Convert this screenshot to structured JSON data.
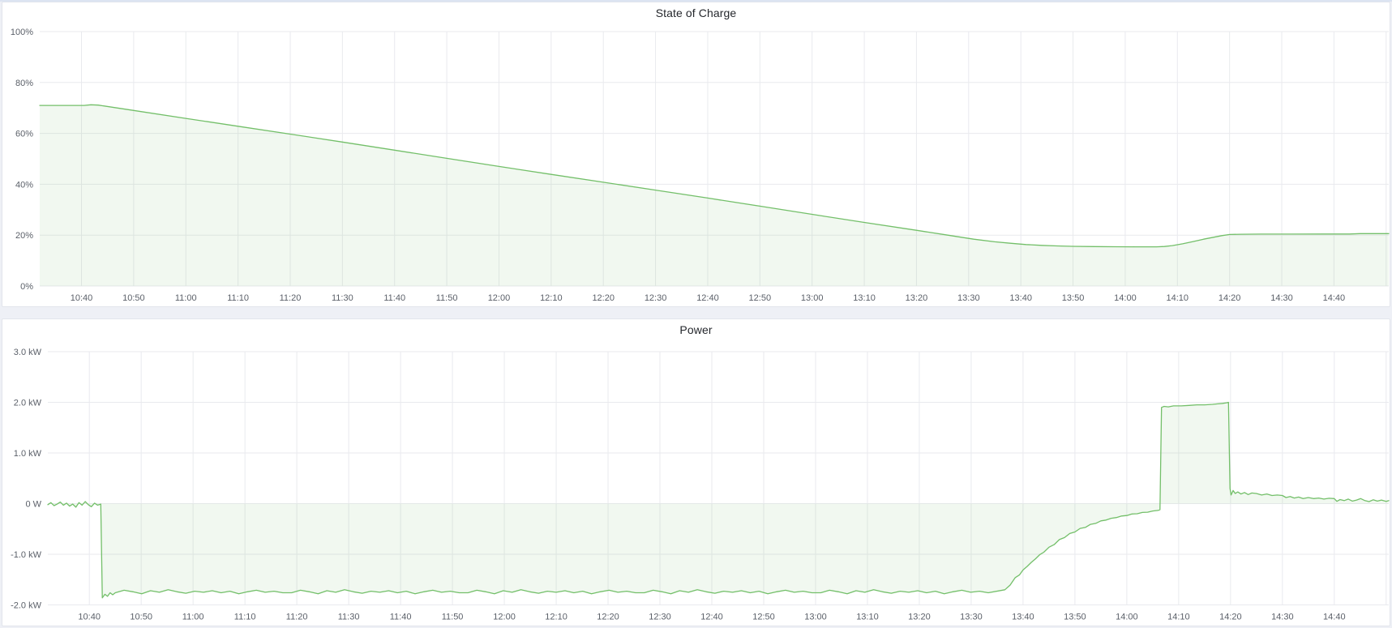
{
  "page": {
    "background_color": "#eef0f6",
    "panel_border_color": "#e2e5ec",
    "grid_color": "#e9eaee",
    "accent_green": "#73bf69"
  },
  "panels": [
    {
      "title": "State of Charge"
    },
    {
      "title": "Power"
    }
  ],
  "chart_data": [
    {
      "type": "area",
      "title": "State of Charge",
      "unit": "%",
      "x_time_range": [
        "10:32",
        "14:50"
      ],
      "ylim": [
        0,
        100
      ],
      "grid": true,
      "legend": "none",
      "y_tick_values": [
        0,
        20,
        40,
        60,
        80,
        100
      ],
      "y_tick_labels": [
        "0%",
        "20%",
        "40%",
        "60%",
        "80%",
        "100%"
      ],
      "x_tick_labels": [
        "10:40",
        "10:50",
        "11:00",
        "11:10",
        "11:20",
        "11:30",
        "11:40",
        "11:50",
        "12:00",
        "12:10",
        "12:20",
        "12:30",
        "12:40",
        "12:50",
        "13:00",
        "13:10",
        "13:20",
        "13:30",
        "13:40",
        "13:50",
        "14:00",
        "14:10",
        "14:20",
        "14:30",
        "14:40"
      ],
      "series": [
        {
          "name": "State of Charge",
          "color": "#73bf69",
          "fill": "rgba(115,191,105,0.10)",
          "segments": [
            {
              "points": [
                [
                  632,
                  71
                ],
                [
                  637,
                  71
                ],
                [
                  640.5,
                  71
                ],
                [
                  641.8,
                  71.25
                ],
                [
                  643.2,
                  71.1
                ],
                [
                  650,
                  69
                ],
                [
                  660,
                  65.9
                ],
                [
                  670,
                  62.8
                ],
                [
                  680,
                  59.7
                ],
                [
                  690,
                  56.6
                ],
                [
                  700,
                  53.4
                ],
                [
                  710,
                  50.2
                ],
                [
                  720,
                  47
                ],
                [
                  730,
                  43.9
                ],
                [
                  740,
                  40.8
                ],
                [
                  750,
                  37.7
                ],
                [
                  760,
                  34.6
                ],
                [
                  770,
                  31.4
                ],
                [
                  780,
                  28.2
                ],
                [
                  790,
                  25
                ],
                [
                  800,
                  21.9
                ],
                [
                  806,
                  20
                ],
                [
                  811,
                  18.4
                ],
                [
                  815,
                  17.4
                ],
                [
                  818,
                  16.8
                ],
                [
                  821,
                  16.3
                ],
                [
                  824,
                  16
                ],
                [
                  827,
                  15.75
                ],
                [
                  830,
                  15.6
                ],
                [
                  834,
                  15.5
                ],
                [
                  838,
                  15.45
                ],
                [
                  842,
                  15.4
                ],
                [
                  846,
                  15.4
                ],
                [
                  847.5,
                  15.55
                ],
                [
                  849,
                  15.9
                ],
                [
                  851,
                  16.6
                ],
                [
                  853,
                  17.5
                ],
                [
                  855,
                  18.4
                ],
                [
                  857,
                  19.2
                ],
                [
                  858.5,
                  19.8
                ],
                [
                  860,
                  20.25
                ],
                [
                  862,
                  20.35
                ],
                [
                  866,
                  20.4
                ],
                [
                  872,
                  20.4
                ],
                [
                  878,
                  20.45
                ],
                [
                  883,
                  20.45
                ],
                [
                  885,
                  20.6
                ],
                [
                  888,
                  20.6
                ],
                [
                  890.5,
                  20.6
                ]
              ]
            }
          ]
        }
      ]
    },
    {
      "type": "area",
      "title": "Power",
      "unit": "kW",
      "x_time_range": [
        "10:32",
        "14:50"
      ],
      "ylim": [
        -2.1,
        3.2
      ],
      "grid": true,
      "legend": "none",
      "y_tick_values": [
        -2,
        -1,
        0,
        1,
        2,
        3
      ],
      "y_tick_labels": [
        "-2.0 kW",
        "-1.0 kW",
        "0 W",
        "1.0 kW",
        "2.0 kW",
        "3.0 kW"
      ],
      "x_tick_labels": [
        "10:40",
        "10:50",
        "11:00",
        "11:10",
        "11:20",
        "11:30",
        "11:40",
        "11:50",
        "12:00",
        "12:10",
        "12:20",
        "12:30",
        "12:40",
        "12:50",
        "13:00",
        "13:10",
        "13:20",
        "13:30",
        "13:40",
        "13:50",
        "14:00",
        "14:10",
        "14:20",
        "14:30",
        "14:40"
      ],
      "series": [
        {
          "name": "Power",
          "color": "#73bf69",
          "fill": "rgba(115,191,105,0.10)",
          "segments": [
            {
              "start": 632,
              "step": 0.6,
              "values": [
                -0.02,
                0.02,
                -0.04,
                -0.01,
                0.03,
                -0.03,
                0.01,
                -0.05,
                -0.01,
                -0.07,
                0.02,
                -0.03,
                0.04,
                -0.02,
                -0.06,
                0.01,
                -0.03,
                -0.01
              ]
            },
            {
              "points": [
                [
                  642.5,
                  -1.86
                ],
                [
                  643,
                  -1.79
                ],
                [
                  643.5,
                  -1.83
                ],
                [
                  644,
                  -1.76
                ],
                [
                  644.5,
                  -1.8
                ]
              ]
            },
            {
              "start": 645,
              "step": 1.7,
              "values": [
                -1.76,
                -1.71,
                -1.74,
                -1.78,
                -1.72,
                -1.75,
                -1.7,
                -1.74,
                -1.77,
                -1.73,
                -1.75,
                -1.72,
                -1.76,
                -1.73,
                -1.78,
                -1.74,
                -1.71,
                -1.75,
                -1.73,
                -1.76,
                -1.76,
                -1.71,
                -1.74,
                -1.78,
                -1.72,
                -1.75,
                -1.7,
                -1.74,
                -1.77,
                -1.73,
                -1.75,
                -1.72,
                -1.76,
                -1.73,
                -1.78,
                -1.74,
                -1.71,
                -1.75,
                -1.73,
                -1.76,
                -1.76,
                -1.71,
                -1.74,
                -1.78,
                -1.72,
                -1.75,
                -1.7,
                -1.74,
                -1.77,
                -1.73,
                -1.75,
                -1.72,
                -1.76,
                -1.73,
                -1.78,
                -1.74,
                -1.71,
                -1.75,
                -1.73,
                -1.76,
                -1.76,
                -1.71,
                -1.74,
                -1.78,
                -1.72,
                -1.75,
                -1.7,
                -1.74,
                -1.77,
                -1.73,
                -1.75,
                -1.72,
                -1.76,
                -1.73,
                -1.78,
                -1.74,
                -1.71,
                -1.75,
                -1.73,
                -1.76,
                -1.76,
                -1.71,
                -1.74,
                -1.78,
                -1.72,
                -1.75,
                -1.7,
                -1.74,
                -1.77,
                -1.73,
                -1.75,
                -1.72,
                -1.76,
                -1.73,
                -1.78,
                -1.74,
                -1.71,
                -1.75,
                -1.73,
                -1.76
              ]
            },
            {
              "points": [
                [
                  816.5,
                  -1.7
                ],
                [
                  817.5,
                  -1.61
                ],
                [
                  818.5,
                  -1.46
                ],
                [
                  819.3,
                  -1.41
                ],
                [
                  820,
                  -1.31
                ],
                [
                  820.8,
                  -1.24
                ],
                [
                  821.6,
                  -1.16
                ],
                [
                  822.4,
                  -1.09
                ],
                [
                  823.2,
                  -1.01
                ],
                [
                  824,
                  -0.96
                ],
                [
                  825,
                  -0.86
                ],
                [
                  826,
                  -0.81
                ],
                [
                  827,
                  -0.71
                ],
                [
                  828,
                  -0.67
                ],
                [
                  829,
                  -0.59
                ],
                [
                  830,
                  -0.56
                ],
                [
                  831,
                  -0.49
                ],
                [
                  832,
                  -0.47
                ],
                [
                  833,
                  -0.41
                ],
                [
                  834,
                  -0.39
                ],
                [
                  835,
                  -0.34
                ],
                [
                  836,
                  -0.325
                ],
                [
                  837,
                  -0.29
                ],
                [
                  838,
                  -0.275
                ],
                [
                  839,
                  -0.245
                ],
                [
                  840,
                  -0.235
                ],
                [
                  841,
                  -0.205
                ],
                [
                  842,
                  -0.2
                ],
                [
                  843,
                  -0.175
                ],
                [
                  844,
                  -0.17
                ],
                [
                  845,
                  -0.145
                ],
                [
                  846,
                  -0.135
                ],
                [
                  846.4,
                  -0.12
                ]
              ]
            },
            {
              "points": [
                [
                  846.7,
                  1.9
                ],
                [
                  847.2,
                  1.92
                ],
                [
                  848,
                  1.91
                ],
                [
                  849,
                  1.93
                ],
                [
                  850.5,
                  1.93
                ],
                [
                  852,
                  1.94
                ],
                [
                  853.5,
                  1.95
                ],
                [
                  855,
                  1.95
                ],
                [
                  856.5,
                  1.96
                ],
                [
                  857.5,
                  1.97
                ],
                [
                  858.5,
                  1.98
                ],
                [
                  859.2,
                  1.99
                ],
                [
                  859.6,
                  2.0
                ]
              ]
            },
            {
              "points": [
                [
                  859.9,
                  0.3
                ],
                [
                  860.1,
                  0.17
                ],
                [
                  860.5,
                  0.26
                ],
                [
                  860.9,
                  0.2
                ],
                [
                  861.4,
                  0.23
                ],
                [
                  862,
                  0.19
                ],
                [
                  862.7,
                  0.22
                ],
                [
                  863.4,
                  0.18
                ],
                [
                  864.1,
                  0.21
                ],
                [
                  865,
                  0.2
                ],
                [
                  866,
                  0.17
                ],
                [
                  867,
                  0.19
                ],
                [
                  868,
                  0.16
                ],
                [
                  869,
                  0.17
                ],
                [
                  870,
                  0.16
                ],
                [
                  870.7,
                  0.12
                ],
                [
                  871.5,
                  0.14
                ],
                [
                  872.3,
                  0.11
                ],
                [
                  873.1,
                  0.13
                ],
                [
                  874,
                  0.1
                ],
                [
                  875,
                  0.12
                ],
                [
                  876,
                  0.1
                ],
                [
                  877,
                  0.11
                ],
                [
                  878,
                  0.09
                ],
                [
                  879,
                  0.105
                ],
                [
                  880,
                  0.1
                ],
                [
                  880.5,
                  0.045
                ],
                [
                  881.1,
                  0.08
                ],
                [
                  881.9,
                  0.06
                ],
                [
                  882.7,
                  0.09
                ],
                [
                  883.5,
                  0.05
                ],
                [
                  884.3,
                  0.07
                ],
                [
                  885.1,
                  0.1
                ],
                [
                  885.9,
                  0.06
                ],
                [
                  886.7,
                  0.04
                ],
                [
                  887.5,
                  0.075
                ],
                [
                  888.3,
                  0.05
                ],
                [
                  889.1,
                  0.07
                ],
                [
                  890,
                  0.045
                ],
                [
                  890.5,
                  0.06
                ]
              ]
            }
          ]
        }
      ]
    }
  ]
}
